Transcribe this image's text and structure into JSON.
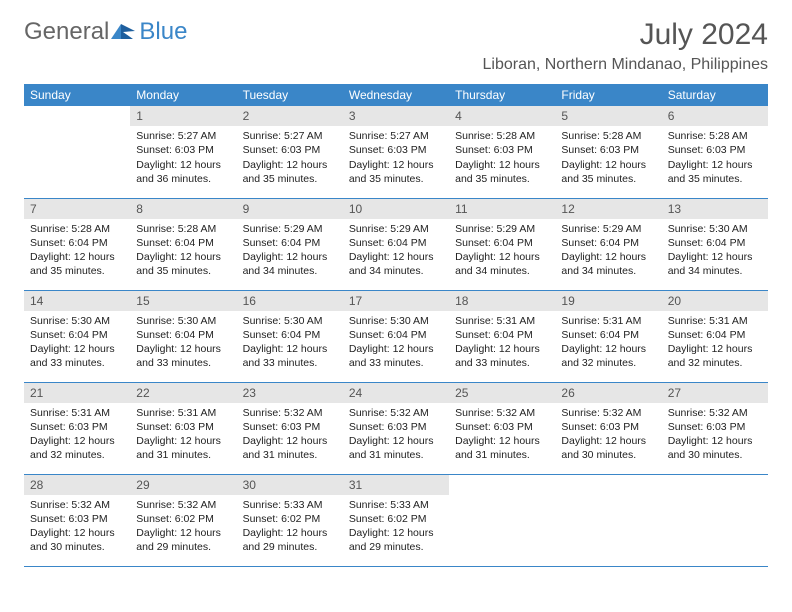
{
  "logo": {
    "part1": "General",
    "part2": "Blue"
  },
  "header": {
    "month_title": "July 2024",
    "location": "Liboran, Northern Mindanao, Philippines"
  },
  "colors": {
    "accent": "#3a86c8",
    "header_bg": "#3a86c8",
    "daynum_bg": "#e6e6e6",
    "text": "#222222",
    "muted": "#555555"
  },
  "weekday_labels": [
    "Sunday",
    "Monday",
    "Tuesday",
    "Wednesday",
    "Thursday",
    "Friday",
    "Saturday"
  ],
  "weeks": [
    [
      {
        "n": "",
        "sr": "",
        "ss": "",
        "dl": ""
      },
      {
        "n": "1",
        "sr": "Sunrise: 5:27 AM",
        "ss": "Sunset: 6:03 PM",
        "dl": "Daylight: 12 hours and 36 minutes."
      },
      {
        "n": "2",
        "sr": "Sunrise: 5:27 AM",
        "ss": "Sunset: 6:03 PM",
        "dl": "Daylight: 12 hours and 35 minutes."
      },
      {
        "n": "3",
        "sr": "Sunrise: 5:27 AM",
        "ss": "Sunset: 6:03 PM",
        "dl": "Daylight: 12 hours and 35 minutes."
      },
      {
        "n": "4",
        "sr": "Sunrise: 5:28 AM",
        "ss": "Sunset: 6:03 PM",
        "dl": "Daylight: 12 hours and 35 minutes."
      },
      {
        "n": "5",
        "sr": "Sunrise: 5:28 AM",
        "ss": "Sunset: 6:03 PM",
        "dl": "Daylight: 12 hours and 35 minutes."
      },
      {
        "n": "6",
        "sr": "Sunrise: 5:28 AM",
        "ss": "Sunset: 6:03 PM",
        "dl": "Daylight: 12 hours and 35 minutes."
      }
    ],
    [
      {
        "n": "7",
        "sr": "Sunrise: 5:28 AM",
        "ss": "Sunset: 6:04 PM",
        "dl": "Daylight: 12 hours and 35 minutes."
      },
      {
        "n": "8",
        "sr": "Sunrise: 5:28 AM",
        "ss": "Sunset: 6:04 PM",
        "dl": "Daylight: 12 hours and 35 minutes."
      },
      {
        "n": "9",
        "sr": "Sunrise: 5:29 AM",
        "ss": "Sunset: 6:04 PM",
        "dl": "Daylight: 12 hours and 34 minutes."
      },
      {
        "n": "10",
        "sr": "Sunrise: 5:29 AM",
        "ss": "Sunset: 6:04 PM",
        "dl": "Daylight: 12 hours and 34 minutes."
      },
      {
        "n": "11",
        "sr": "Sunrise: 5:29 AM",
        "ss": "Sunset: 6:04 PM",
        "dl": "Daylight: 12 hours and 34 minutes."
      },
      {
        "n": "12",
        "sr": "Sunrise: 5:29 AM",
        "ss": "Sunset: 6:04 PM",
        "dl": "Daylight: 12 hours and 34 minutes."
      },
      {
        "n": "13",
        "sr": "Sunrise: 5:30 AM",
        "ss": "Sunset: 6:04 PM",
        "dl": "Daylight: 12 hours and 34 minutes."
      }
    ],
    [
      {
        "n": "14",
        "sr": "Sunrise: 5:30 AM",
        "ss": "Sunset: 6:04 PM",
        "dl": "Daylight: 12 hours and 33 minutes."
      },
      {
        "n": "15",
        "sr": "Sunrise: 5:30 AM",
        "ss": "Sunset: 6:04 PM",
        "dl": "Daylight: 12 hours and 33 minutes."
      },
      {
        "n": "16",
        "sr": "Sunrise: 5:30 AM",
        "ss": "Sunset: 6:04 PM",
        "dl": "Daylight: 12 hours and 33 minutes."
      },
      {
        "n": "17",
        "sr": "Sunrise: 5:30 AM",
        "ss": "Sunset: 6:04 PM",
        "dl": "Daylight: 12 hours and 33 minutes."
      },
      {
        "n": "18",
        "sr": "Sunrise: 5:31 AM",
        "ss": "Sunset: 6:04 PM",
        "dl": "Daylight: 12 hours and 33 minutes."
      },
      {
        "n": "19",
        "sr": "Sunrise: 5:31 AM",
        "ss": "Sunset: 6:04 PM",
        "dl": "Daylight: 12 hours and 32 minutes."
      },
      {
        "n": "20",
        "sr": "Sunrise: 5:31 AM",
        "ss": "Sunset: 6:04 PM",
        "dl": "Daylight: 12 hours and 32 minutes."
      }
    ],
    [
      {
        "n": "21",
        "sr": "Sunrise: 5:31 AM",
        "ss": "Sunset: 6:03 PM",
        "dl": "Daylight: 12 hours and 32 minutes."
      },
      {
        "n": "22",
        "sr": "Sunrise: 5:31 AM",
        "ss": "Sunset: 6:03 PM",
        "dl": "Daylight: 12 hours and 31 minutes."
      },
      {
        "n": "23",
        "sr": "Sunrise: 5:32 AM",
        "ss": "Sunset: 6:03 PM",
        "dl": "Daylight: 12 hours and 31 minutes."
      },
      {
        "n": "24",
        "sr": "Sunrise: 5:32 AM",
        "ss": "Sunset: 6:03 PM",
        "dl": "Daylight: 12 hours and 31 minutes."
      },
      {
        "n": "25",
        "sr": "Sunrise: 5:32 AM",
        "ss": "Sunset: 6:03 PM",
        "dl": "Daylight: 12 hours and 31 minutes."
      },
      {
        "n": "26",
        "sr": "Sunrise: 5:32 AM",
        "ss": "Sunset: 6:03 PM",
        "dl": "Daylight: 12 hours and 30 minutes."
      },
      {
        "n": "27",
        "sr": "Sunrise: 5:32 AM",
        "ss": "Sunset: 6:03 PM",
        "dl": "Daylight: 12 hours and 30 minutes."
      }
    ],
    [
      {
        "n": "28",
        "sr": "Sunrise: 5:32 AM",
        "ss": "Sunset: 6:03 PM",
        "dl": "Daylight: 12 hours and 30 minutes."
      },
      {
        "n": "29",
        "sr": "Sunrise: 5:32 AM",
        "ss": "Sunset: 6:02 PM",
        "dl": "Daylight: 12 hours and 29 minutes."
      },
      {
        "n": "30",
        "sr": "Sunrise: 5:33 AM",
        "ss": "Sunset: 6:02 PM",
        "dl": "Daylight: 12 hours and 29 minutes."
      },
      {
        "n": "31",
        "sr": "Sunrise: 5:33 AM",
        "ss": "Sunset: 6:02 PM",
        "dl": "Daylight: 12 hours and 29 minutes."
      },
      {
        "n": "",
        "sr": "",
        "ss": "",
        "dl": ""
      },
      {
        "n": "",
        "sr": "",
        "ss": "",
        "dl": ""
      },
      {
        "n": "",
        "sr": "",
        "ss": "",
        "dl": ""
      }
    ]
  ]
}
